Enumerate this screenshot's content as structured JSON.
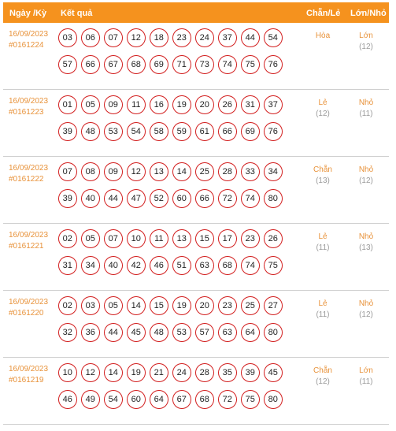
{
  "header": {
    "date": "Ngày /Kỳ",
    "result": "Kết quả",
    "even_odd": "Chẵn/Lẻ",
    "big_small": "Lớn/Nhỏ"
  },
  "rows": [
    {
      "date": "16/09/2023",
      "draw": "#0161224",
      "line1": [
        "03",
        "06",
        "07",
        "12",
        "18",
        "23",
        "24",
        "37",
        "44",
        "54"
      ],
      "line2": [
        "57",
        "66",
        "67",
        "68",
        "69",
        "71",
        "73",
        "74",
        "75",
        "76"
      ],
      "even_odd": "Hòa",
      "even_odd_count": "",
      "big_small": "Lớn",
      "big_small_count": "(12)"
    },
    {
      "date": "16/09/2023",
      "draw": "#0161223",
      "line1": [
        "01",
        "05",
        "09",
        "11",
        "16",
        "19",
        "20",
        "26",
        "31",
        "37"
      ],
      "line2": [
        "39",
        "48",
        "53",
        "54",
        "58",
        "59",
        "61",
        "66",
        "69",
        "76"
      ],
      "even_odd": "Lẻ",
      "even_odd_count": "(12)",
      "big_small": "Nhỏ",
      "big_small_count": "(11)"
    },
    {
      "date": "16/09/2023",
      "draw": "#0161222",
      "line1": [
        "07",
        "08",
        "09",
        "12",
        "13",
        "14",
        "25",
        "28",
        "33",
        "34"
      ],
      "line2": [
        "39",
        "40",
        "44",
        "47",
        "52",
        "60",
        "66",
        "72",
        "74",
        "80"
      ],
      "even_odd": "Chẵn",
      "even_odd_count": "(13)",
      "big_small": "Nhỏ",
      "big_small_count": "(12)"
    },
    {
      "date": "16/09/2023",
      "draw": "#0161221",
      "line1": [
        "02",
        "05",
        "07",
        "10",
        "11",
        "13",
        "15",
        "17",
        "23",
        "26"
      ],
      "line2": [
        "31",
        "34",
        "40",
        "42",
        "46",
        "51",
        "63",
        "68",
        "74",
        "75"
      ],
      "even_odd": "Lẻ",
      "even_odd_count": "(11)",
      "big_small": "Nhỏ",
      "big_small_count": "(13)"
    },
    {
      "date": "16/09/2023",
      "draw": "#0161220",
      "line1": [
        "02",
        "03",
        "05",
        "14",
        "15",
        "19",
        "20",
        "23",
        "25",
        "27"
      ],
      "line2": [
        "32",
        "36",
        "44",
        "45",
        "48",
        "53",
        "57",
        "63",
        "64",
        "80"
      ],
      "even_odd": "Lẻ",
      "even_odd_count": "(11)",
      "big_small": "Nhỏ",
      "big_small_count": "(12)"
    },
    {
      "date": "16/09/2023",
      "draw": "#0161219",
      "line1": [
        "10",
        "12",
        "14",
        "19",
        "21",
        "24",
        "28",
        "35",
        "39",
        "45"
      ],
      "line2": [
        "46",
        "49",
        "54",
        "60",
        "64",
        "67",
        "68",
        "72",
        "75",
        "80"
      ],
      "even_odd": "Chẵn",
      "even_odd_count": "(12)",
      "big_small": "Lớn",
      "big_small_count": "(11)"
    }
  ],
  "colors": {
    "header_bg": "#f5921e",
    "accent_text": "#e8923a",
    "ball_border": "#d21e1e"
  }
}
